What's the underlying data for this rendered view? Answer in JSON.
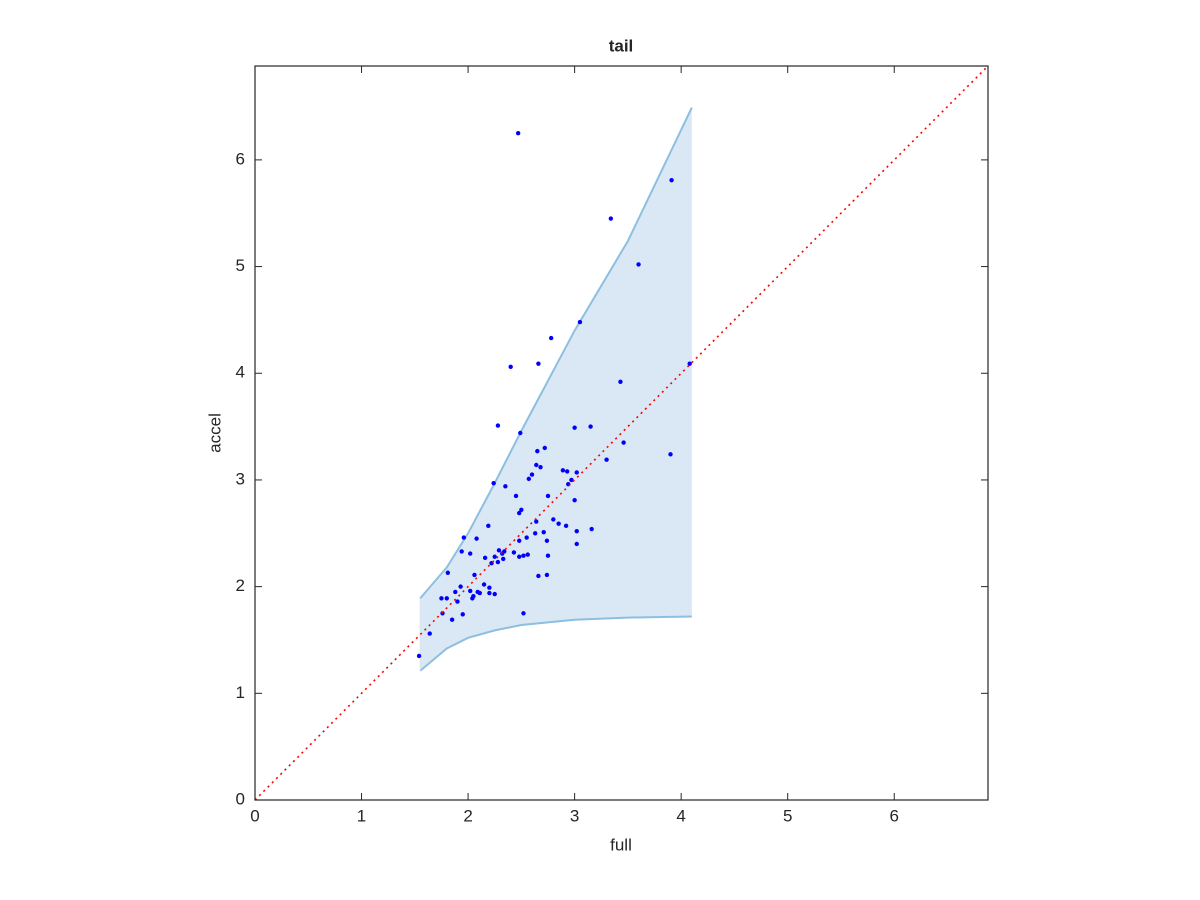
{
  "chart_data": {
    "type": "scatter",
    "title": "tail",
    "x_label": "full",
    "y_label": "accel",
    "xlim": [
      0,
      6.88
    ],
    "ylim": [
      0,
      6.88
    ],
    "xticks": [
      0,
      1,
      2,
      3,
      4,
      5,
      6
    ],
    "yticks": [
      0,
      1,
      2,
      3,
      4,
      5,
      6
    ],
    "grid": false,
    "series": [
      {
        "type": "band",
        "color": "#d9e8f4",
        "edge_color": "#8dbfe0",
        "x": [
          1.55,
          1.8,
          2.0,
          2.25,
          2.5,
          3.0,
          3.5,
          4.1
        ],
        "upper": [
          1.89,
          2.18,
          2.5,
          2.97,
          3.46,
          4.4,
          5.24,
          6.49
        ],
        "lower": [
          1.21,
          1.42,
          1.52,
          1.59,
          1.64,
          1.69,
          1.71,
          1.72
        ]
      },
      {
        "type": "scatter",
        "color": "#0000ff",
        "x": [
          2.47,
          3.91,
          3.34,
          3.6,
          3.05,
          2.78,
          2.4,
          2.66,
          4.08,
          3.43,
          2.28,
          3.0,
          3.15,
          2.49,
          3.46,
          2.72,
          2.65,
          3.9,
          3.3,
          2.64,
          2.68,
          2.89,
          2.93,
          3.02,
          2.6,
          2.57,
          2.97,
          2.94,
          2.24,
          2.35,
          2.75,
          2.45,
          3.0,
          2.5,
          2.48,
          2.8,
          2.64,
          2.85,
          2.92,
          2.19,
          3.16,
          3.02,
          2.71,
          2.63,
          2.55,
          1.96,
          2.08,
          2.74,
          2.48,
          3.02,
          2.43,
          1.94,
          2.02,
          2.29,
          2.34,
          2.32,
          2.25,
          2.48,
          2.56,
          2.75,
          2.52,
          2.16,
          2.33,
          2.28,
          2.22,
          1.81,
          2.06,
          2.66,
          2.74,
          2.15,
          1.93,
          2.2,
          2.02,
          1.88,
          2.09,
          2.11,
          2.2,
          2.25,
          1.75,
          1.8,
          2.04,
          2.05,
          1.9,
          1.76,
          2.52,
          1.95,
          1.85,
          1.64,
          1.54
        ],
        "y": [
          6.25,
          5.81,
          5.45,
          5.02,
          4.48,
          4.33,
          4.06,
          4.09,
          4.09,
          3.92,
          3.51,
          3.49,
          3.5,
          3.44,
          3.35,
          3.3,
          3.27,
          3.24,
          3.19,
          3.14,
          3.12,
          3.09,
          3.08,
          3.07,
          3.05,
          3.01,
          3.0,
          2.96,
          2.97,
          2.94,
          2.85,
          2.85,
          2.81,
          2.72,
          2.69,
          2.63,
          2.61,
          2.59,
          2.57,
          2.57,
          2.54,
          2.52,
          2.51,
          2.5,
          2.46,
          2.46,
          2.45,
          2.43,
          2.43,
          2.4,
          2.32,
          2.33,
          2.31,
          2.34,
          2.33,
          2.31,
          2.28,
          2.28,
          2.3,
          2.29,
          2.29,
          2.27,
          2.26,
          2.23,
          2.22,
          2.13,
          2.11,
          2.1,
          2.11,
          2.02,
          2.0,
          1.99,
          1.96,
          1.95,
          1.95,
          1.94,
          1.94,
          1.93,
          1.89,
          1.89,
          1.89,
          1.91,
          1.86,
          1.75,
          1.75,
          1.74,
          1.69,
          1.56,
          1.35
        ]
      },
      {
        "type": "line",
        "color": "#ff0000",
        "linestyle": "dotted",
        "x": [
          0,
          6.88
        ],
        "y": [
          0,
          6.88
        ]
      }
    ]
  }
}
